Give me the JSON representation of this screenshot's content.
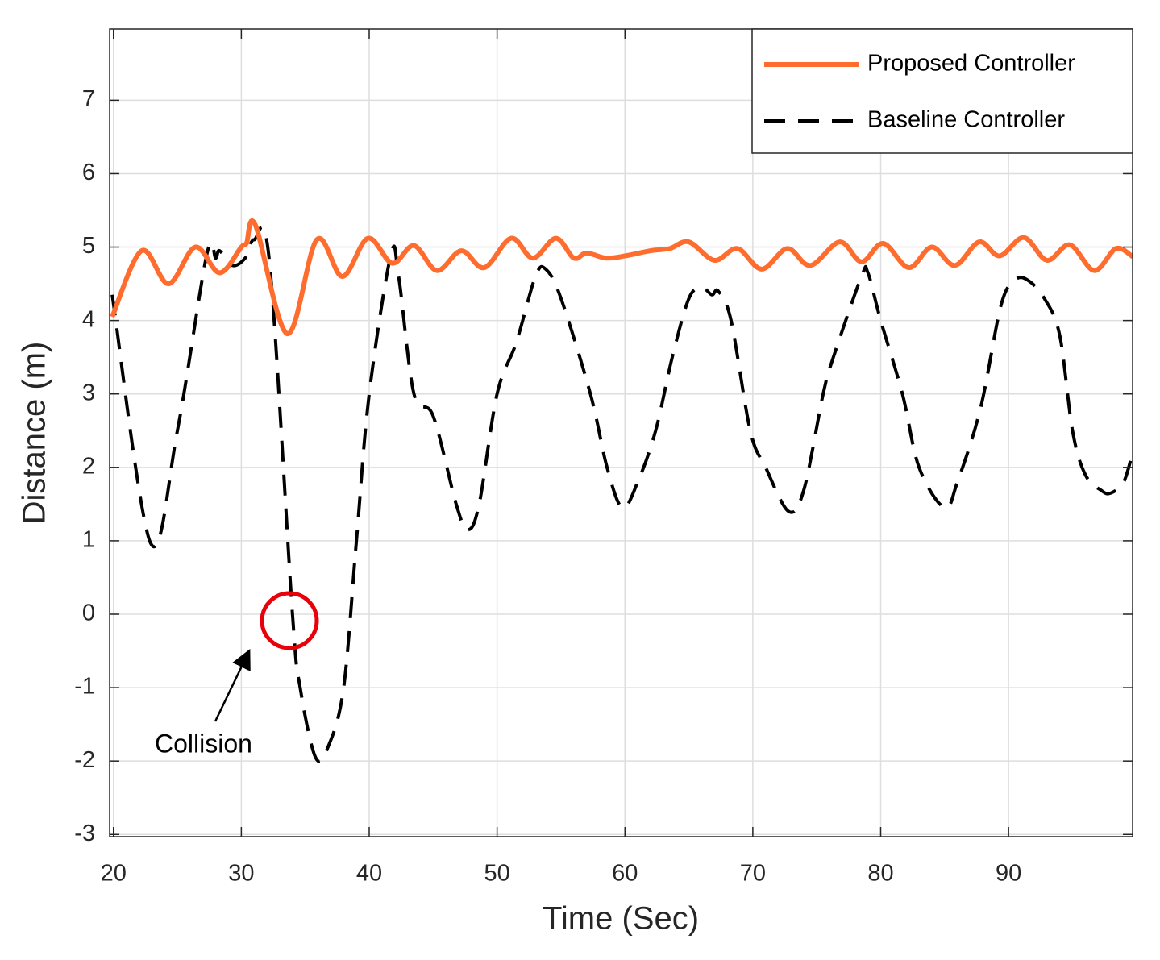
{
  "chart_data": {
    "type": "line",
    "xlabel": "Time (Sec)",
    "ylabel": "Distance (m)",
    "xlim": [
      19.7,
      99.7
    ],
    "ylim": [
      -3.03,
      7.97
    ],
    "xticks": [
      20,
      30,
      40,
      50,
      60,
      70,
      80,
      90
    ],
    "yticks": [
      -3,
      -2,
      -1,
      0,
      1,
      2,
      3,
      4,
      5,
      6,
      7
    ],
    "grid": true,
    "legend": "upper right",
    "annotation": "Collision",
    "series": [
      {
        "name": "Proposed Controller",
        "color": "#ff6d2e",
        "linestyle": "solid",
        "x": [
          19.9,
          22.2,
          24.3,
          26.4,
          28.3,
          30.0,
          30.4,
          31.1,
          33.6,
          35.9,
          37.9,
          39.9,
          41.8,
          43.5,
          45.3,
          47.2,
          49.0,
          51.1,
          52.8,
          54.6,
          56.0,
          57.0,
          58.5,
          60.0,
          62.0,
          63.5,
          65.0,
          67.0,
          68.8,
          70.7,
          72.7,
          74.5,
          76.8,
          78.5,
          80.2,
          82.2,
          84.0,
          85.8,
          87.7,
          89.3,
          91.2,
          93.0,
          94.8,
          96.7,
          98.4,
          99.7
        ],
        "values": [
          4.05,
          4.95,
          4.5,
          5.0,
          4.65,
          5.0,
          5.05,
          5.3,
          3.82,
          5.1,
          4.6,
          5.12,
          4.78,
          5.02,
          4.68,
          4.95,
          4.72,
          5.12,
          4.85,
          5.12,
          4.85,
          4.92,
          4.85,
          4.88,
          4.95,
          4.98,
          5.07,
          4.82,
          4.98,
          4.7,
          4.98,
          4.75,
          5.07,
          4.8,
          5.05,
          4.72,
          5.0,
          4.75,
          5.07,
          4.88,
          5.13,
          4.82,
          5.03,
          4.68,
          4.98,
          4.87
        ]
      },
      {
        "name": "Baseline Controller",
        "color": "#000000",
        "linestyle": "dashed",
        "x": [
          19.9,
          22.9,
          25.0,
          27.3,
          28.0,
          28.3,
          29.3,
          30.3,
          31.0,
          32.2,
          34.0,
          34.6,
          35.8,
          36.8,
          38.0,
          39.0,
          40.0,
          41.7,
          42.3,
          43.5,
          45.0,
          46.8,
          47.7,
          48.6,
          50.0,
          51.5,
          53.0,
          53.8,
          55.0,
          57.3,
          58.6,
          59.8,
          61.0,
          62.4,
          63.7,
          65.0,
          66.0,
          66.8,
          67.3,
          68.3,
          69.8,
          71.0,
          72.8,
          74.0,
          75.5,
          76.3,
          78.5,
          79.0,
          80.0,
          81.7,
          83.0,
          85.0,
          86.0,
          87.8,
          89.4,
          90.5,
          91.5,
          92.8,
          94.0,
          95.0,
          96.0,
          97.3,
          98.0,
          99.0,
          99.7
        ],
        "values": [
          4.35,
          0.97,
          2.5,
          4.9,
          4.85,
          4.95,
          4.75,
          4.85,
          5.1,
          4.8,
          0.0,
          -1.0,
          -1.95,
          -1.8,
          -1.0,
          1.0,
          3.0,
          4.9,
          4.6,
          3.0,
          2.7,
          1.5,
          1.15,
          1.5,
          3.0,
          3.7,
          4.6,
          4.7,
          4.3,
          3.0,
          2.0,
          1.45,
          1.8,
          2.5,
          3.5,
          4.3,
          4.45,
          4.35,
          4.4,
          4.0,
          2.5,
          2.0,
          1.4,
          1.7,
          3.0,
          3.5,
          4.6,
          4.65,
          4.0,
          3.0,
          2.0,
          1.45,
          1.8,
          2.8,
          4.2,
          4.55,
          4.55,
          4.3,
          3.8,
          2.5,
          1.9,
          1.68,
          1.65,
          1.8,
          2.2
        ]
      }
    ]
  }
}
